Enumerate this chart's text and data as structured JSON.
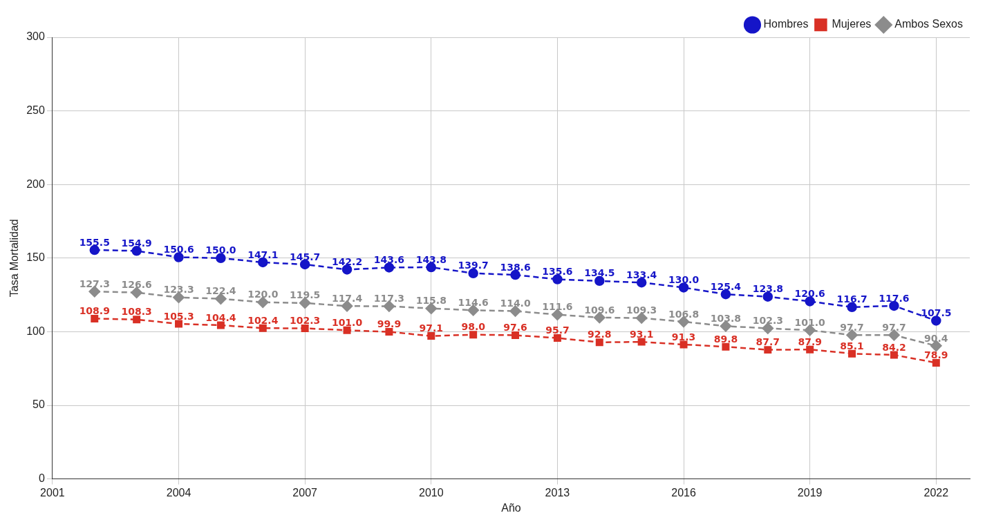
{
  "chart_data": {
    "type": "line",
    "xlabel": "Año",
    "ylabel": "Tasa Mortalidad",
    "x": [
      2002,
      2003,
      2004,
      2005,
      2006,
      2007,
      2008,
      2009,
      2010,
      2011,
      2012,
      2013,
      2014,
      2015,
      2016,
      2017,
      2018,
      2019,
      2020,
      2021,
      2022
    ],
    "series": [
      {
        "name": "Hombres",
        "color": "#1515c8",
        "marker": "circle",
        "values": [
          155.5,
          154.9,
          150.6,
          150.0,
          147.1,
          145.7,
          142.2,
          143.6,
          143.8,
          139.7,
          138.6,
          135.6,
          134.5,
          133.4,
          130.0,
          125.4,
          123.8,
          120.6,
          116.7,
          117.6,
          107.5
        ],
        "value_labels": [
          "155.5",
          "154.9",
          "150.6",
          "150.0",
          "147.1",
          "145.7",
          "142.2",
          "143.6",
          "143.8",
          "139.7",
          "138.6",
          "135.6",
          "134.5",
          "133.4",
          "130.0",
          "125.4",
          "123.8",
          "120.6",
          "116.7",
          "117.6",
          "107.5"
        ]
      },
      {
        "name": "Mujeres",
        "color": "#d93025",
        "marker": "square",
        "values": [
          108.9,
          108.3,
          105.3,
          104.4,
          102.4,
          102.3,
          101.0,
          99.9,
          97.1,
          98.0,
          97.6,
          95.7,
          92.8,
          93.1,
          91.3,
          89.8,
          87.7,
          87.9,
          85.1,
          84.2,
          78.9
        ],
        "value_labels": [
          "108.9",
          "108.3",
          "105.3",
          "104.4",
          "102.4",
          "102.3",
          "101.0",
          "99.9",
          "97.1",
          "98.0",
          "97.6",
          "95.7",
          "92.8",
          "93.1",
          "91.3",
          "89.8",
          "87.7",
          "87.9",
          "85.1",
          "84.2",
          "78.9"
        ]
      },
      {
        "name": "Ambos Sexos",
        "color": "#8c8c8c",
        "marker": "diamond",
        "values": [
          127.3,
          126.6,
          123.3,
          122.4,
          120.0,
          119.5,
          117.4,
          117.3,
          115.8,
          114.6,
          114.0,
          111.6,
          109.6,
          109.3,
          106.8,
          103.8,
          102.3,
          101.0,
          97.7,
          97.7,
          90.4
        ],
        "value_labels": [
          "127.3",
          "126.6",
          "123.3",
          "122.4",
          "120.0",
          "119.5",
          "117.4",
          "117.3",
          "115.8",
          "114.6",
          "114.0",
          "111.6",
          "109.6",
          "109.3",
          "106.8",
          "103.8",
          "102.3",
          "101.0",
          "97.7",
          "97.7",
          "90.4"
        ]
      }
    ],
    "xlim": [
      2001,
      2022.8
    ],
    "xticks": [
      2001,
      2004,
      2007,
      2010,
      2013,
      2016,
      2019,
      2022
    ],
    "ylim": [
      0,
      300
    ],
    "yticks": [
      0,
      50,
      100,
      150,
      200,
      250,
      300
    ],
    "grid": true,
    "legend": "top right",
    "line_style": "dashed"
  }
}
